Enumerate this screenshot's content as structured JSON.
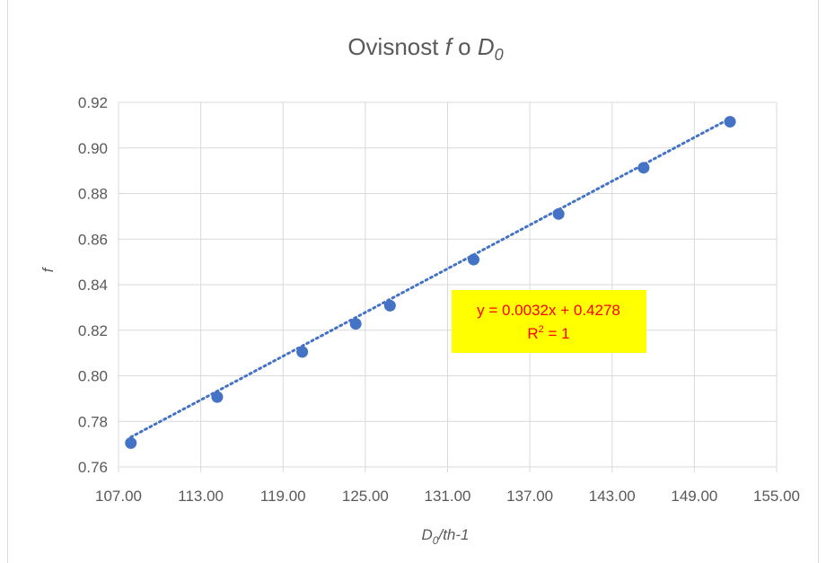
{
  "chart_data": {
    "type": "scatter",
    "title": {
      "prefix": "Ovisnost ",
      "f": "f",
      "mid": " o ",
      "d": "D",
      "sub": "0"
    },
    "xlabel": {
      "d": "D",
      "sub": "0",
      "rest": "/th-1"
    },
    "ylabel": "f",
    "xlim": [
      107,
      155
    ],
    "ylim": [
      0.76,
      0.92
    ],
    "x_ticks": [
      "107.00",
      "113.00",
      "119.00",
      "125.00",
      "131.00",
      "137.00",
      "143.00",
      "149.00",
      "155.00"
    ],
    "y_ticks": [
      "0.76",
      "0.78",
      "0.80",
      "0.82",
      "0.84",
      "0.86",
      "0.88",
      "0.90",
      "0.92"
    ],
    "grid": true,
    "points": [
      {
        "x": 107.9,
        "y": 0.7705
      },
      {
        "x": 114.2,
        "y": 0.7907
      },
      {
        "x": 120.4,
        "y": 0.8105
      },
      {
        "x": 124.3,
        "y": 0.8228
      },
      {
        "x": 126.8,
        "y": 0.8308
      },
      {
        "x": 132.9,
        "y": 0.851
      },
      {
        "x": 139.1,
        "y": 0.871
      },
      {
        "x": 145.3,
        "y": 0.8913
      },
      {
        "x": 151.6,
        "y": 0.9115
      }
    ],
    "trendline": {
      "slope": 0.0032,
      "intercept": 0.4278,
      "style": "dotted"
    },
    "equation_label": {
      "line1": "y = 0.0032x + 0.4278",
      "r2_prefix": "R",
      "r2_sup": "2",
      "r2_suffix": " = 1"
    },
    "colors": {
      "marker": "#4472c4",
      "trendline": "#4472c4",
      "grid": "#d9d9d9",
      "label_bg": "#ffff00",
      "label_text": "#ff0000"
    }
  }
}
